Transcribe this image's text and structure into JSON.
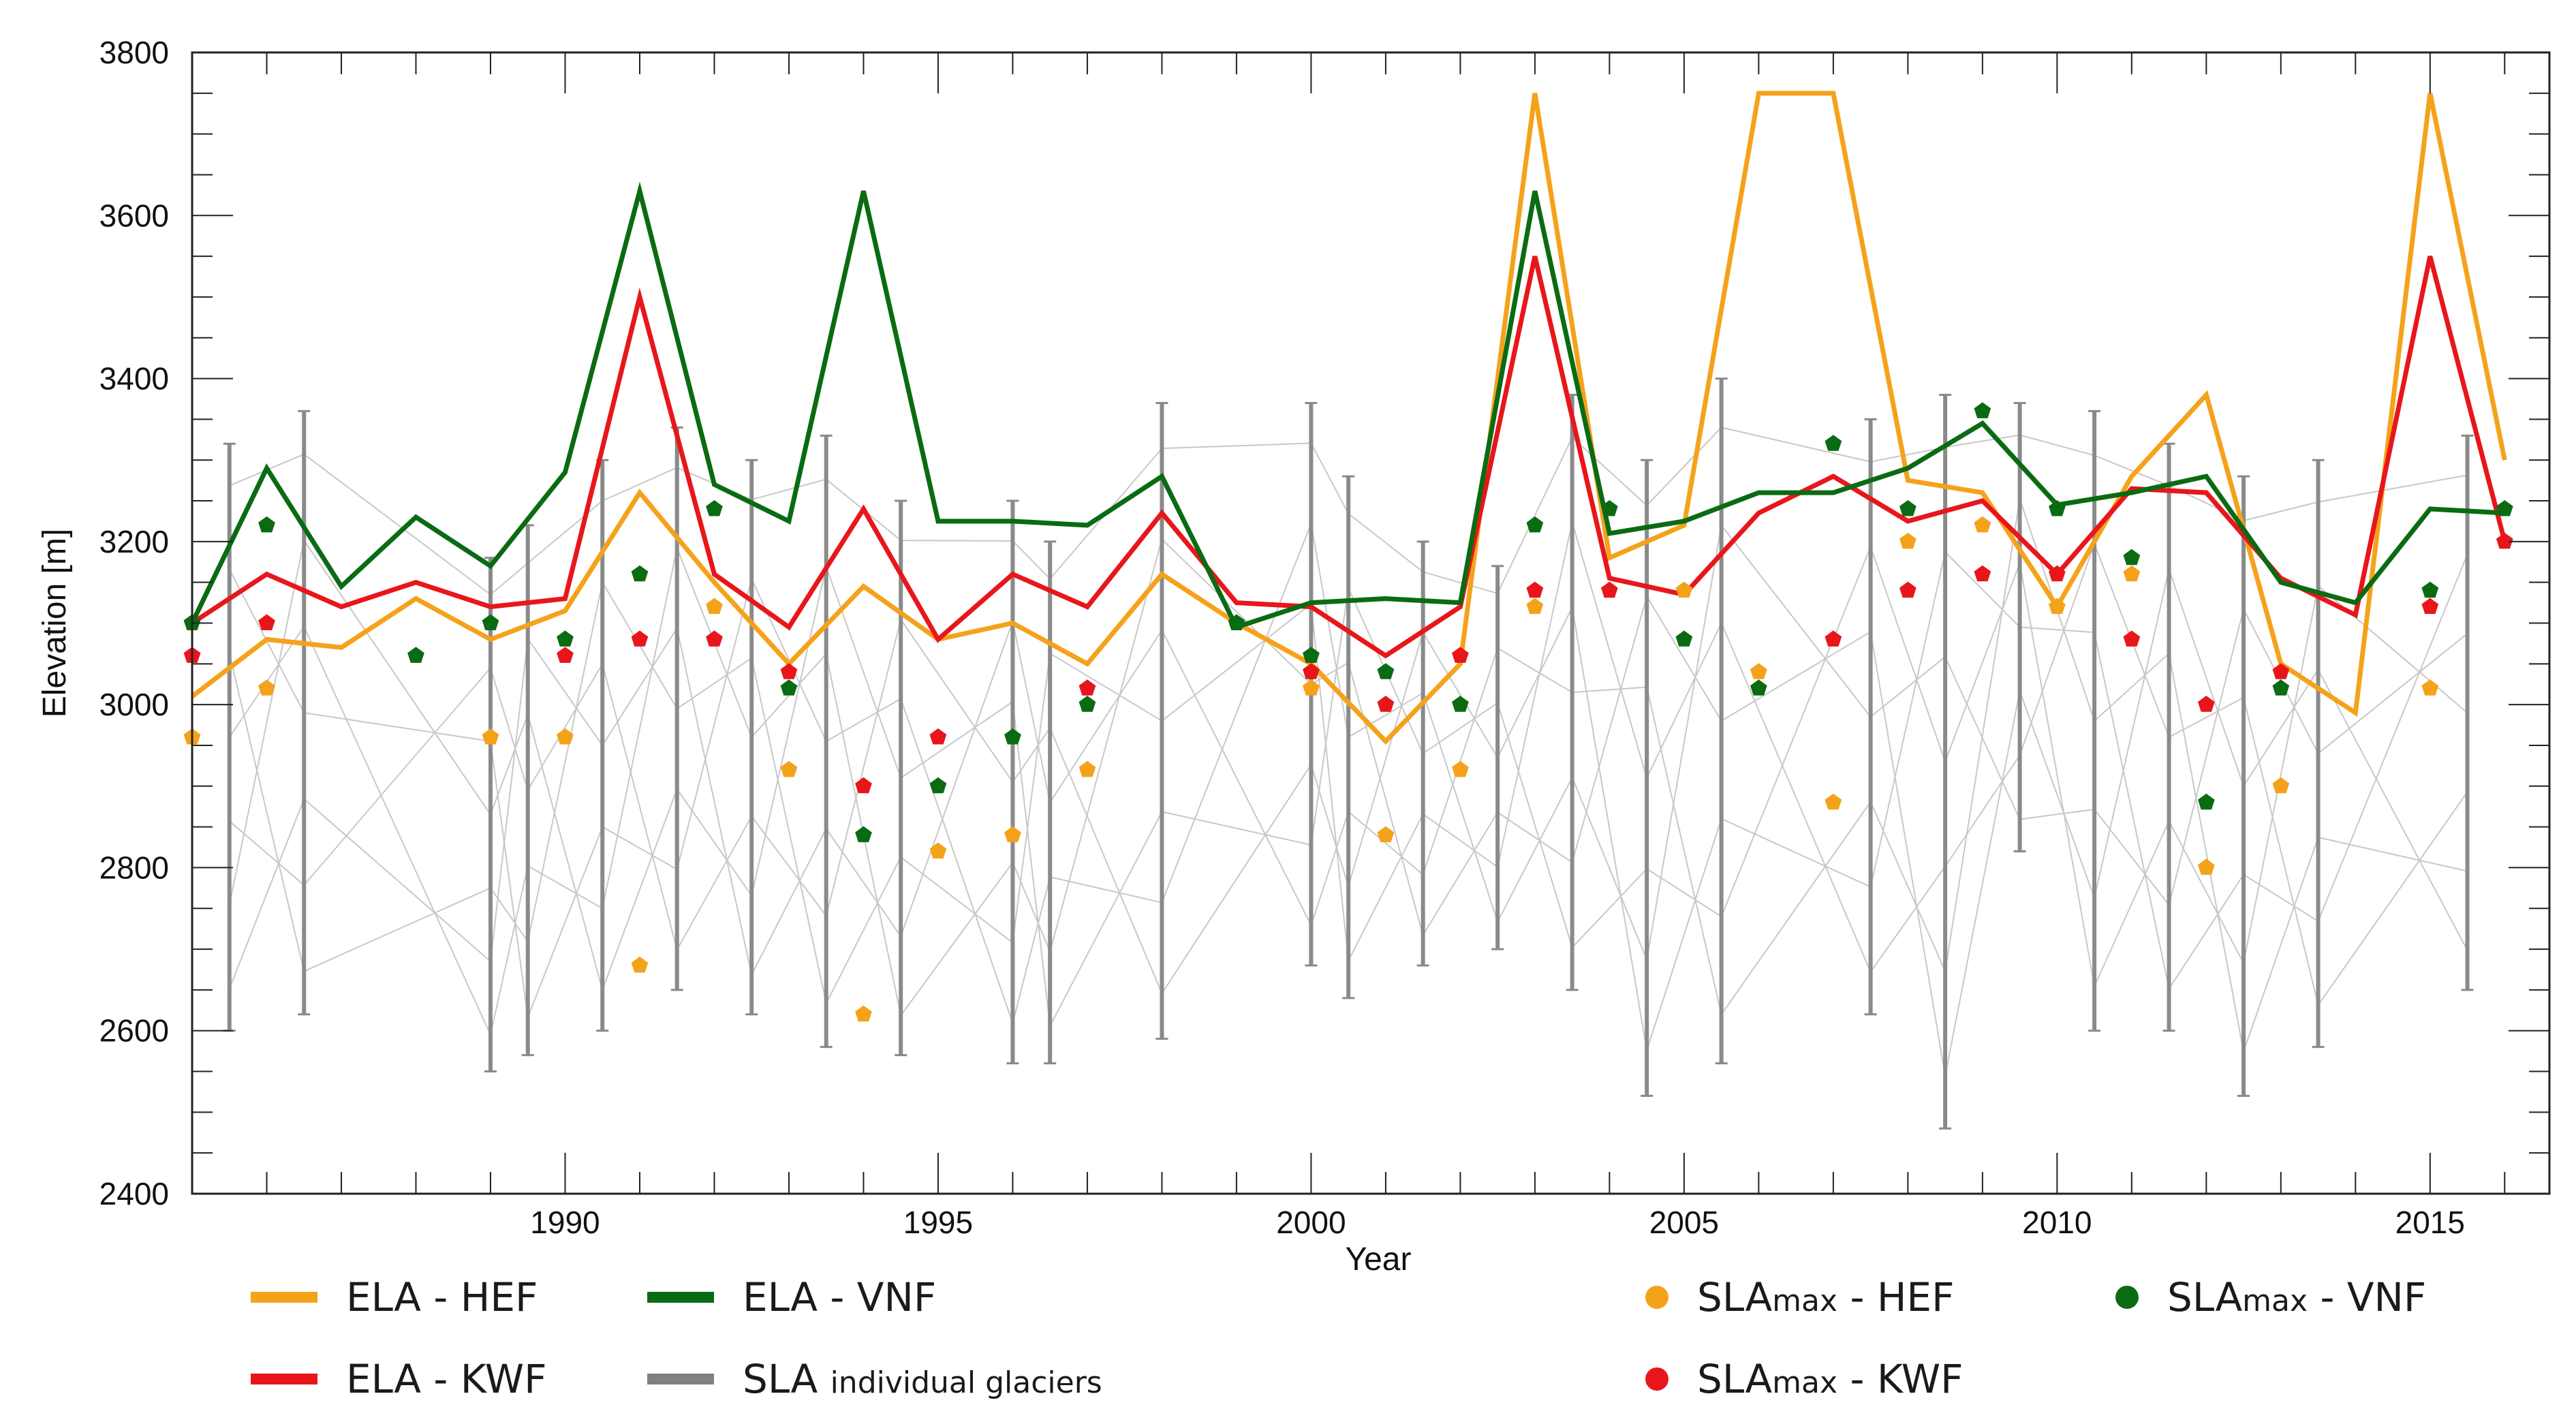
{
  "chart_data": {
    "type": "line",
    "xlabel": "Year",
    "ylabel": "Elevation [m]",
    "xlim": [
      1985,
      2016.6
    ],
    "ylim": [
      2400,
      3800
    ],
    "x_ticks": [
      1990,
      1995,
      2000,
      2005,
      2010,
      2015
    ],
    "y_ticks": [
      2400,
      2600,
      2800,
      3000,
      3200,
      3400,
      3600,
      3800
    ],
    "grid": false,
    "legend_position": "bottom",
    "series": [
      {
        "name": "ELA - HEF",
        "kind": "line",
        "color": "#f5a21b",
        "x": [
          1985,
          1986,
          1987,
          1988,
          1989,
          1990,
          1991,
          1992,
          1993,
          1994,
          1995,
          1996,
          1997,
          1998,
          1999,
          2000,
          2001,
          2002,
          2003,
          2004,
          2005,
          2006,
          2007,
          2008,
          2009,
          2010,
          2011,
          2012,
          2013,
          2014,
          2015,
          2016
        ],
        "values": [
          3010,
          3080,
          3070,
          3130,
          3080,
          3115,
          3260,
          3150,
          3050,
          3145,
          3080,
          3100,
          3050,
          3160,
          3100,
          3050,
          2955,
          3050,
          3750,
          3180,
          3220,
          3750,
          3750,
          3275,
          3260,
          3120,
          3280,
          3380,
          3050,
          2990,
          3750,
          3300
        ]
      },
      {
        "name": "ELA - KWF",
        "kind": "line",
        "color": "#e8161b",
        "x": [
          1985,
          1986,
          1987,
          1988,
          1989,
          1990,
          1991,
          1992,
          1993,
          1994,
          1995,
          1996,
          1997,
          1998,
          1999,
          2000,
          2001,
          2002,
          2003,
          2004,
          2005,
          2006,
          2007,
          2008,
          2009,
          2010,
          2011,
          2012,
          2013,
          2014,
          2015,
          2016
        ],
        "values": [
          3100,
          3160,
          3120,
          3150,
          3120,
          3130,
          3500,
          3160,
          3095,
          3240,
          3080,
          3160,
          3120,
          3235,
          3125,
          3120,
          3060,
          3120,
          3550,
          3155,
          3135,
          3235,
          3280,
          3225,
          3250,
          3160,
          3265,
          3260,
          3155,
          3110,
          3550,
          3200
        ]
      },
      {
        "name": "ELA - VNF",
        "kind": "line",
        "color": "#0a6b12",
        "x": [
          1985,
          1986,
          1987,
          1988,
          1989,
          1990,
          1991,
          1992,
          1993,
          1994,
          1995,
          1996,
          1997,
          1998,
          1999,
          2000,
          2001,
          2002,
          2003,
          2004,
          2005,
          2006,
          2007,
          2008,
          2009,
          2010,
          2011,
          2012,
          2013,
          2014,
          2015,
          2016
        ],
        "values": [
          3100,
          3290,
          3145,
          3230,
          3170,
          3285,
          3630,
          3270,
          3225,
          3630,
          3225,
          3225,
          3220,
          3280,
          3095,
          3125,
          3130,
          3125,
          3630,
          3210,
          3225,
          3260,
          3260,
          3290,
          3345,
          3245,
          3260,
          3280,
          3150,
          3125,
          3240,
          3235
        ]
      },
      {
        "name": "SLAmax - HEF",
        "kind": "points",
        "color": "#f5a21b",
        "x": [
          1985,
          1986,
          1989,
          1990,
          1991,
          1992,
          1993,
          1994,
          1995,
          1996,
          1997,
          2000,
          2001,
          2002,
          2003,
          2005,
          2006,
          2007,
          2008,
          2009,
          2010,
          2011,
          2012,
          2013,
          2015
        ],
        "values": [
          2960,
          3020,
          2960,
          2960,
          2680,
          3120,
          2920,
          2620,
          2820,
          2840,
          2920,
          3020,
          2840,
          2920,
          3120,
          3140,
          3040,
          2880,
          3200,
          3220,
          3120,
          3160,
          2800,
          2900,
          3020
        ]
      },
      {
        "name": "SLAmax - KWF",
        "kind": "points",
        "color": "#e8161b",
        "x": [
          1985,
          1986,
          1990,
          1991,
          1992,
          1993,
          1994,
          1995,
          1997,
          2000,
          2001,
          2002,
          2003,
          2004,
          2007,
          2008,
          2009,
          2010,
          2011,
          2012,
          2013,
          2015,
          2016
        ],
        "values": [
          3060,
          3100,
          3060,
          3080,
          3080,
          3040,
          2900,
          2960,
          3020,
          3040,
          3000,
          3060,
          3140,
          3140,
          3080,
          3140,
          3160,
          3160,
          3080,
          3000,
          3040,
          3120,
          3200
        ]
      },
      {
        "name": "SLAmax - VNF",
        "kind": "points",
        "color": "#0a6b12",
        "x": [
          1985,
          1986,
          1988,
          1989,
          1990,
          1991,
          1992,
          1993,
          1994,
          1995,
          1996,
          1997,
          1999,
          2000,
          2001,
          2002,
          2003,
          2004,
          2005,
          2006,
          2007,
          2008,
          2009,
          2010,
          2011,
          2012,
          2013,
          2015,
          2016
        ],
        "values": [
          3100,
          3220,
          3060,
          3100,
          3080,
          3160,
          3240,
          3020,
          2840,
          2900,
          2960,
          3000,
          3100,
          3060,
          3040,
          3000,
          3220,
          3240,
          3080,
          3020,
          3320,
          3240,
          3360,
          3240,
          3180,
          2880,
          3020,
          3140,
          3240
        ]
      },
      {
        "name": "SLA individual glaciers",
        "kind": "range-bars",
        "color": "#808080",
        "x": [
          1985.5,
          1986.5,
          1989,
          1989.5,
          1990.5,
          1991.5,
          1992.5,
          1993.5,
          1994.5,
          1996,
          1996.5,
          1998,
          2000,
          2000.5,
          2001.5,
          2002.5,
          2003.5,
          2004.5,
          2005.5,
          2007.5,
          2008.5,
          2009.5,
          2010.5,
          2011.5,
          2012.5,
          2013.5,
          2015.5
        ],
        "low": [
          2600,
          2620,
          2550,
          2570,
          2600,
          2650,
          2620,
          2580,
          2570,
          2560,
          2560,
          2590,
          2680,
          2640,
          2680,
          2700,
          2650,
          2520,
          2560,
          2620,
          2480,
          2820,
          2600,
          2600,
          2520,
          2580,
          2650
        ],
        "high": [
          3320,
          3360,
          3180,
          3220,
          3300,
          3340,
          3300,
          3330,
          3250,
          3250,
          3200,
          3370,
          3370,
          3280,
          3200,
          3170,
          3380,
          3300,
          3400,
          3350,
          3380,
          3370,
          3360,
          3320,
          3280,
          3300,
          3330
        ]
      }
    ]
  },
  "legend": {
    "items": [
      {
        "label": "ELA - HEF",
        "color": "#f5a21b"
      },
      {
        "label": "ELA - VNF",
        "color": "#0a6b12"
      },
      {
        "label": "ELA - KWF",
        "color": "#e8161b"
      },
      {
        "label_main": "SLA ",
        "label_sub": "individual glaciers",
        "color": "#808080"
      },
      {
        "label_main": "SLA",
        "label_sub": "max",
        "label_tail": " - HEF",
        "color": "#f5a21b"
      },
      {
        "label_main": "SLA",
        "label_sub": "max",
        "label_tail": " - VNF",
        "color": "#0a6b12"
      },
      {
        "label_main": "SLA",
        "label_sub": "max",
        "label_tail": " - KWF",
        "color": "#e8161b"
      }
    ]
  }
}
